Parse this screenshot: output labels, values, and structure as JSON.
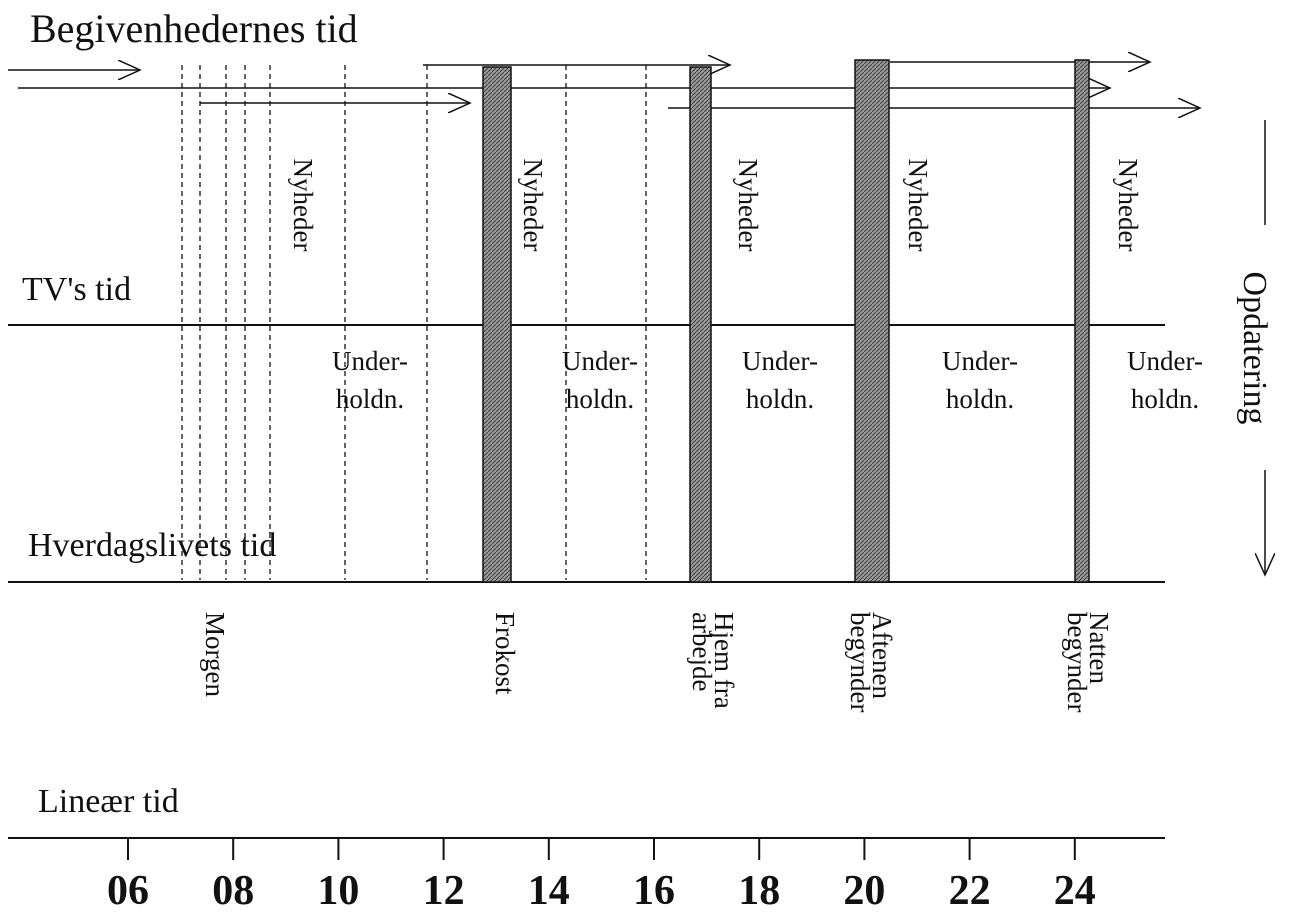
{
  "levels": [
    "Begivenhedernes tid",
    "TV's tid",
    "Hverdagslivets tid",
    "Lineær tid"
  ],
  "side_label": "Opdatering",
  "news": [
    "Nyheder",
    "Nyheder",
    "Nyheder",
    "Nyheder",
    "Nyheder"
  ],
  "entertainment": [
    [
      "Under-",
      "holdn."
    ],
    [
      "Under-",
      "holdn."
    ],
    [
      "Under-",
      "holdn."
    ],
    [
      "Under-",
      "holdn."
    ],
    [
      "Under-",
      "holdn."
    ]
  ],
  "events": [
    [
      "Morgen"
    ],
    [
      "Frokost"
    ],
    [
      "Hjem fra",
      "arbejde"
    ],
    [
      "Aftenen",
      "begynder"
    ],
    [
      "Natten",
      "begynder"
    ]
  ],
  "ticks": [
    "06",
    "08",
    "10",
    "12",
    "14",
    "16",
    "18",
    "20",
    "22",
    "24"
  ]
}
